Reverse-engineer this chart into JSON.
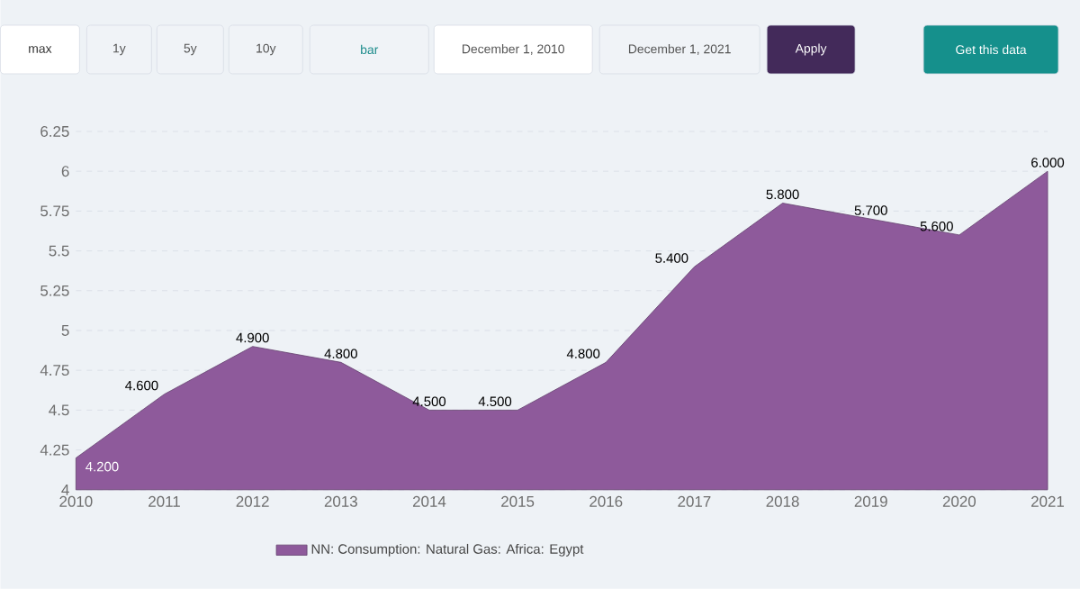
{
  "chart_data": {
    "type": "area",
    "x": [
      2010,
      2011,
      2012,
      2013,
      2014,
      2015,
      2016,
      2017,
      2018,
      2019,
      2020,
      2021
    ],
    "series": [
      {
        "name": "NN: Consumption: Natural Gas: Africa: Egypt",
        "color": "#8e5a9b",
        "values": [
          4.2,
          4.6,
          4.9,
          4.8,
          4.5,
          4.5,
          4.8,
          5.4,
          5.8,
          5.7,
          5.6,
          6.0
        ],
        "value_labels": [
          "4.200",
          "4.600",
          "4.900",
          "4.800",
          "4.500",
          "4.500",
          "4.800",
          "5.400",
          "5.800",
          "5.700",
          "5.600",
          "6.000"
        ]
      }
    ],
    "xlim": [
      2010,
      2021
    ],
    "xticks": [
      2010,
      2011,
      2012,
      2013,
      2014,
      2015,
      2016,
      2017,
      2018,
      2019,
      2020,
      2021
    ],
    "ylim": [
      4,
      6.25
    ],
    "yticks": [
      4,
      4.25,
      4.5,
      4.75,
      5,
      5.25,
      5.5,
      5.75,
      6,
      6.25
    ],
    "grid": "y",
    "legend": "bottom",
    "annotations": [
      "max",
      "1y",
      "5y",
      "10y",
      "bar",
      "December 1, 2010",
      "December 1, 2021",
      "Apply",
      "Get this data"
    ]
  }
}
